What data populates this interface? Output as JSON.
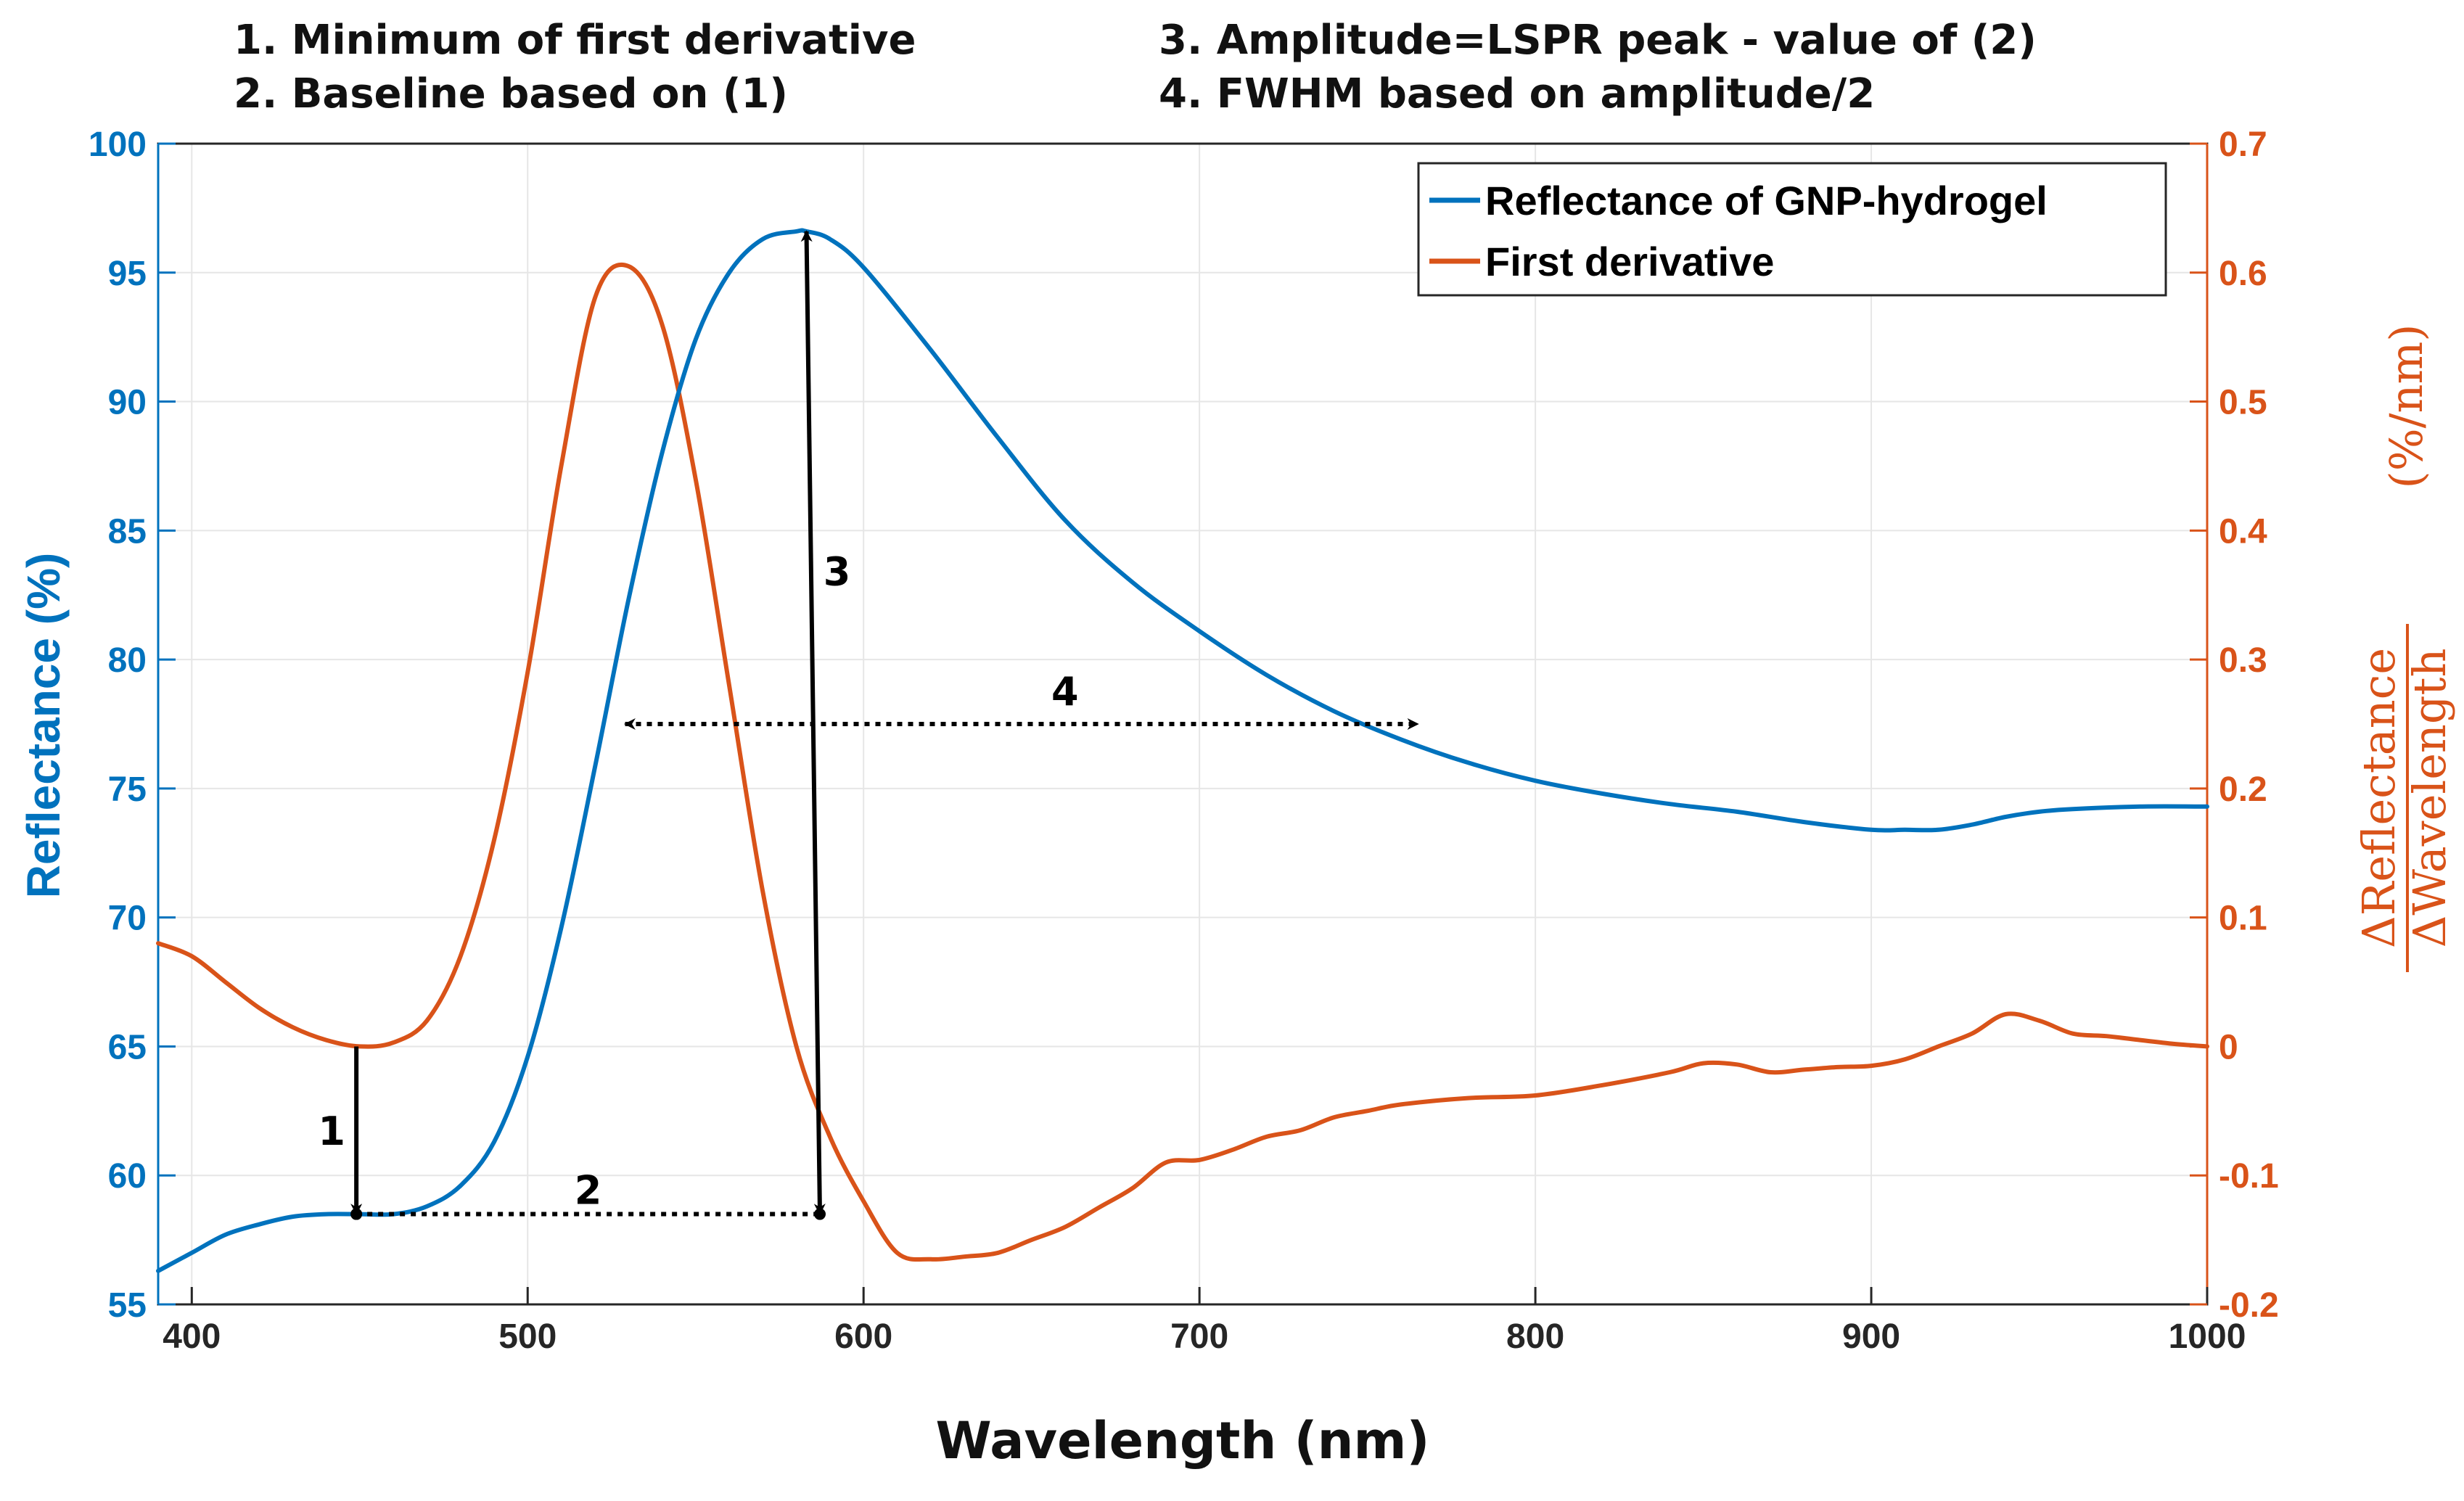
{
  "chart_data": {
    "type": "line",
    "title_notes": [
      "1. Minimum of first derivative",
      "2. Baseline based on (1)",
      "3. Amplitude=LSPR peak - value of (2)",
      "4. FWHM based on amplitude/2"
    ],
    "xlabel": "Wavelength (nm)",
    "ylabel_left": "Reflectance (%)",
    "ylabel_right_fraction_top": "ΔReflectance",
    "ylabel_right_fraction_bottom": "ΔWavelength",
    "ylabel_right_units": "(%/nm)",
    "xlim": [
      390,
      1000
    ],
    "ylim_left": [
      55,
      100
    ],
    "ylim_right": [
      -0.2,
      0.7
    ],
    "x_ticks": [
      400,
      500,
      600,
      700,
      800,
      900,
      1000
    ],
    "x_tick_labels": [
      "400",
      "500",
      "600",
      "700",
      "800",
      "900",
      "1000"
    ],
    "y_ticks_left": [
      55,
      60,
      65,
      70,
      75,
      80,
      85,
      90,
      95,
      100
    ],
    "y_tick_labels_left": [
      "55",
      "60",
      "65",
      "70",
      "75",
      "80",
      "85",
      "90",
      "95",
      "100"
    ],
    "y_ticks_right": [
      -0.2,
      -0.1,
      0,
      0.1,
      0.2,
      0.3,
      0.4,
      0.5,
      0.6,
      0.7
    ],
    "y_tick_labels_right": [
      "-0.2",
      "-0.1",
      "0",
      "0.1",
      "0.2",
      "0.3",
      "0.4",
      "0.5",
      "0.6",
      "0.7"
    ],
    "grid": true,
    "legend_position": "top-right",
    "series": [
      {
        "name": "Reflectance of GNP-hydrogel",
        "axis": "left",
        "color": "#0072BD",
        "x": [
          390,
          400,
          410,
          420,
          430,
          440,
          450,
          460,
          470,
          480,
          490,
          500,
          510,
          520,
          530,
          540,
          550,
          560,
          570,
          580,
          583,
          590,
          600,
          620,
          640,
          660,
          680,
          700,
          720,
          740,
          760,
          780,
          800,
          820,
          840,
          860,
          880,
          900,
          910,
          920,
          930,
          940,
          950,
          960,
          980,
          1000
        ],
        "y": [
          56.3,
          57.0,
          57.7,
          58.1,
          58.4,
          58.5,
          58.5,
          58.5,
          58.8,
          59.6,
          61.3,
          64.6,
          69.6,
          75.8,
          82.3,
          88.0,
          92.4,
          95.0,
          96.3,
          96.6,
          96.6,
          96.3,
          95.2,
          92.0,
          88.6,
          85.4,
          83.0,
          81.1,
          79.4,
          78.0,
          76.9,
          76.0,
          75.3,
          74.8,
          74.4,
          74.1,
          73.7,
          73.4,
          73.4,
          73.4,
          73.6,
          73.9,
          74.1,
          74.2,
          74.3,
          74.3
        ]
      },
      {
        "name": "First derivative",
        "axis": "right",
        "color": "#D95319",
        "x": [
          390,
          400,
          410,
          420,
          430,
          440,
          450,
          460,
          470,
          480,
          490,
          500,
          510,
          520,
          530,
          540,
          550,
          560,
          570,
          580,
          590,
          600,
          610,
          620,
          630,
          640,
          650,
          660,
          670,
          680,
          690,
          700,
          710,
          720,
          730,
          740,
          750,
          760,
          780,
          800,
          820,
          840,
          850,
          860,
          870,
          880,
          890,
          900,
          910,
          920,
          930,
          940,
          950,
          960,
          970,
          980,
          990,
          1000
        ],
        "y": [
          0.08,
          0.07,
          0.05,
          0.03,
          0.015,
          0.005,
          0.0,
          0.003,
          0.02,
          0.07,
          0.16,
          0.29,
          0.45,
          0.58,
          0.605,
          0.56,
          0.44,
          0.28,
          0.12,
          0.0,
          -0.07,
          -0.12,
          -0.16,
          -0.165,
          -0.163,
          -0.16,
          -0.15,
          -0.14,
          -0.125,
          -0.11,
          -0.09,
          -0.088,
          -0.08,
          -0.07,
          -0.065,
          -0.055,
          -0.05,
          -0.045,
          -0.04,
          -0.038,
          -0.03,
          -0.02,
          -0.013,
          -0.014,
          -0.02,
          -0.018,
          -0.016,
          -0.015,
          -0.01,
          0.0,
          0.01,
          0.025,
          0.02,
          0.01,
          0.008,
          0.005,
          0.002,
          0.0
        ]
      }
    ],
    "annotations": [
      {
        "label": "1",
        "type": "arrow",
        "from": {
          "x": 449,
          "y_right": 0.0
        },
        "to": {
          "x": 449,
          "y_left": 58.5
        }
      },
      {
        "label": "2",
        "type": "dotted-line",
        "from": {
          "x": 449,
          "y_left": 58.5
        },
        "to": {
          "x": 587,
          "y_left": 58.5
        }
      },
      {
        "label": "3",
        "type": "double-arrow",
        "from": {
          "x": 587,
          "y_left": 58.5
        },
        "to": {
          "x": 583,
          "y_left": 96.6
        }
      },
      {
        "label": "4",
        "type": "dotted-double-arrow",
        "from": {
          "x": 529,
          "y_left": 77.5
        },
        "to": {
          "x": 765,
          "y_left": 77.5
        }
      }
    ]
  }
}
